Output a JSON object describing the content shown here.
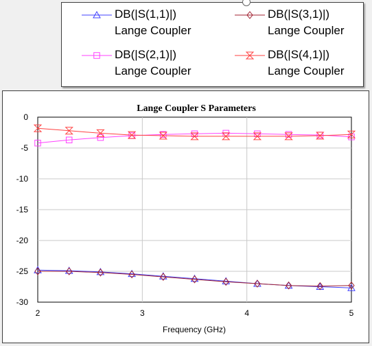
{
  "legend": {
    "entries": [
      {
        "label": "DB(|S(1,1)|)",
        "sub": "Lange Coupler",
        "color": "#4040ff",
        "marker": "triangle-up"
      },
      {
        "label": "DB(|S(3,1)|)",
        "sub": "Lange Coupler",
        "color": "#a02030",
        "marker": "diamond"
      },
      {
        "label": "DB(|S(2,1)|)",
        "sub": "Lange Coupler",
        "color": "#ff40ff",
        "marker": "square"
      },
      {
        "label": "DB(|S(4,1)|)",
        "sub": "Lange Coupler",
        "color": "#ff4040",
        "marker": "hourglass"
      }
    ]
  },
  "chart_data": {
    "type": "line",
    "title": "Lange Coupler S Parameters",
    "xlabel": "Frequency (GHz)",
    "ylabel": "",
    "xlim": [
      2,
      5
    ],
    "ylim": [
      -30,
      0
    ],
    "xticks": [
      "2",
      "3",
      "4",
      "5"
    ],
    "yticks": [
      "0",
      "-5",
      "-10",
      "-15",
      "-20",
      "-25",
      "-30"
    ],
    "grid": true,
    "legend_position": "top-right",
    "x": [
      2.0,
      2.3,
      2.6,
      2.9,
      3.2,
      3.5,
      3.8,
      4.1,
      4.4,
      4.7,
      5.0
    ],
    "series": [
      {
        "name": "DB(|S(1,1)|) Lange Coupler",
        "color": "#4040ff",
        "marker": "triangle-up",
        "values": [
          -24.8,
          -24.9,
          -25.1,
          -25.4,
          -25.8,
          -26.2,
          -26.6,
          -27.0,
          -27.3,
          -27.5,
          -27.7
        ]
      },
      {
        "name": "DB(|S(3,1)|) Lange Coupler",
        "color": "#a02030",
        "marker": "diamond",
        "values": [
          -25.0,
          -25.0,
          -25.2,
          -25.5,
          -25.9,
          -26.3,
          -26.7,
          -27.0,
          -27.3,
          -27.4,
          -27.3
        ]
      },
      {
        "name": "DB(|S(2,1)|) Lange Coupler",
        "color": "#ff40ff",
        "marker": "square",
        "values": [
          -4.2,
          -3.7,
          -3.3,
          -3.0,
          -2.8,
          -2.7,
          -2.6,
          -2.7,
          -2.8,
          -2.9,
          -3.2
        ]
      },
      {
        "name": "DB(|S(4,1)|) Lange Coupler",
        "color": "#ff4040",
        "marker": "hourglass",
        "values": [
          -1.8,
          -2.2,
          -2.6,
          -2.9,
          -3.0,
          -3.1,
          -3.1,
          -3.1,
          -3.1,
          -3.0,
          -2.8
        ]
      }
    ]
  }
}
